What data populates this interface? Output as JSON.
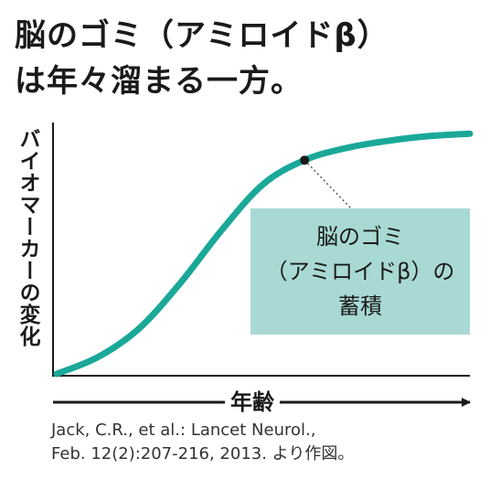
{
  "title": {
    "line1": "脳のゴミ（アミロイドβ）",
    "line2": "は年々溜まる一方。"
  },
  "chart_data": {
    "type": "line",
    "title": "脳のゴミ（アミロイドβ）は年々溜まる一方。",
    "xlabel": "年齢",
    "ylabel": "バイオマーカーの変化",
    "x": [
      0,
      0.1,
      0.2,
      0.3,
      0.4,
      0.5,
      0.6,
      0.7,
      0.8,
      0.9,
      1.0
    ],
    "series": [
      {
        "values": [
          0.0,
          0.07,
          0.19,
          0.38,
          0.6,
          0.79,
          0.89,
          0.94,
          0.97,
          0.99,
          1.0
        ]
      }
    ],
    "xlim": [
      0,
      1
    ],
    "ylim": [
      0,
      1.1
    ],
    "grid": false,
    "annotation": {
      "point": [
        0.6,
        0.89
      ],
      "lines": [
        "脳のゴミ",
        "（アミロイドβ）の",
        "蓄積"
      ]
    },
    "color": "#1aa898"
  },
  "source": {
    "line1": "Jack, C.R., et al.: Lancet Neurol.,",
    "line2": "Feb. 12(2):207-216, 2013. より作図。"
  }
}
